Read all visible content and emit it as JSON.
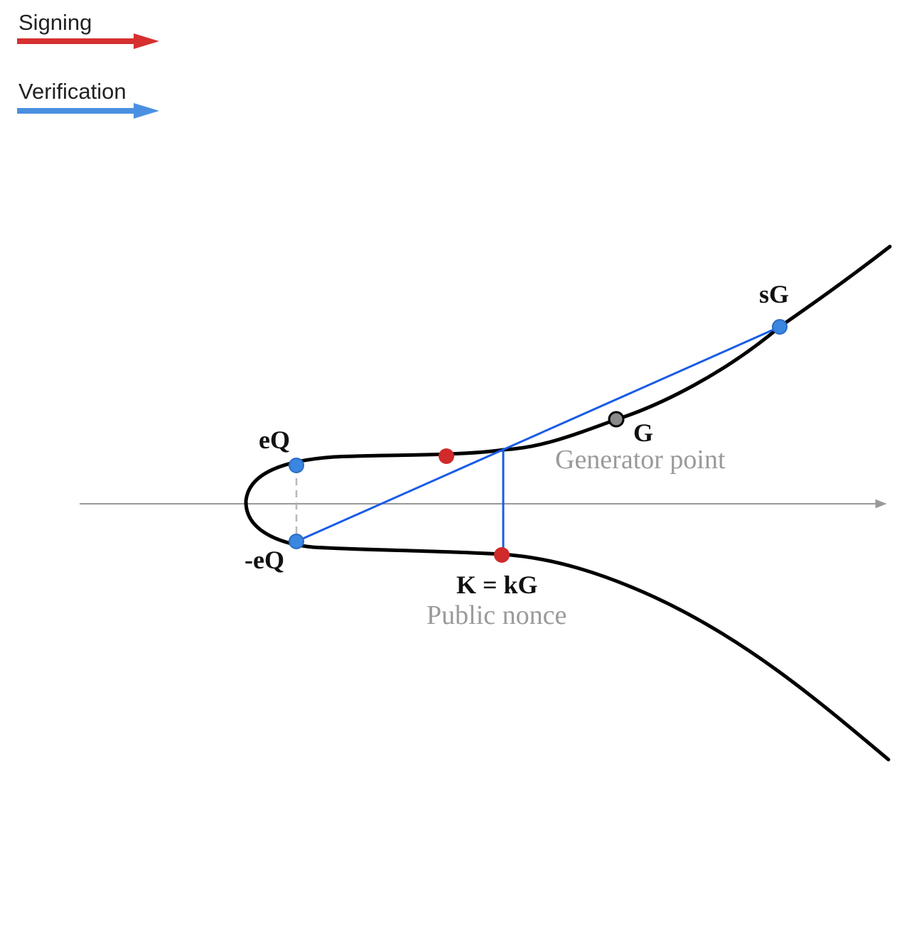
{
  "legend": {
    "signing": {
      "label": "Signing",
      "color": "#d63030"
    },
    "verification": {
      "label": "Verification",
      "color": "#4a90e2"
    }
  },
  "colors": {
    "curve": "#000000",
    "axis": "#999999",
    "verify_line": "#1a5ce6",
    "point_blue": "#3a86e0",
    "point_red": "#d02a2a",
    "point_gray": "#8a8a8a"
  },
  "points": {
    "sG": {
      "label": "sG"
    },
    "G": {
      "label": "G",
      "sublabel": "Generator point"
    },
    "eQ": {
      "label": "eQ"
    },
    "neg_eQ": {
      "label": "-eQ"
    },
    "K": {
      "label": "K = kG",
      "sublabel": "Public nonce"
    }
  }
}
